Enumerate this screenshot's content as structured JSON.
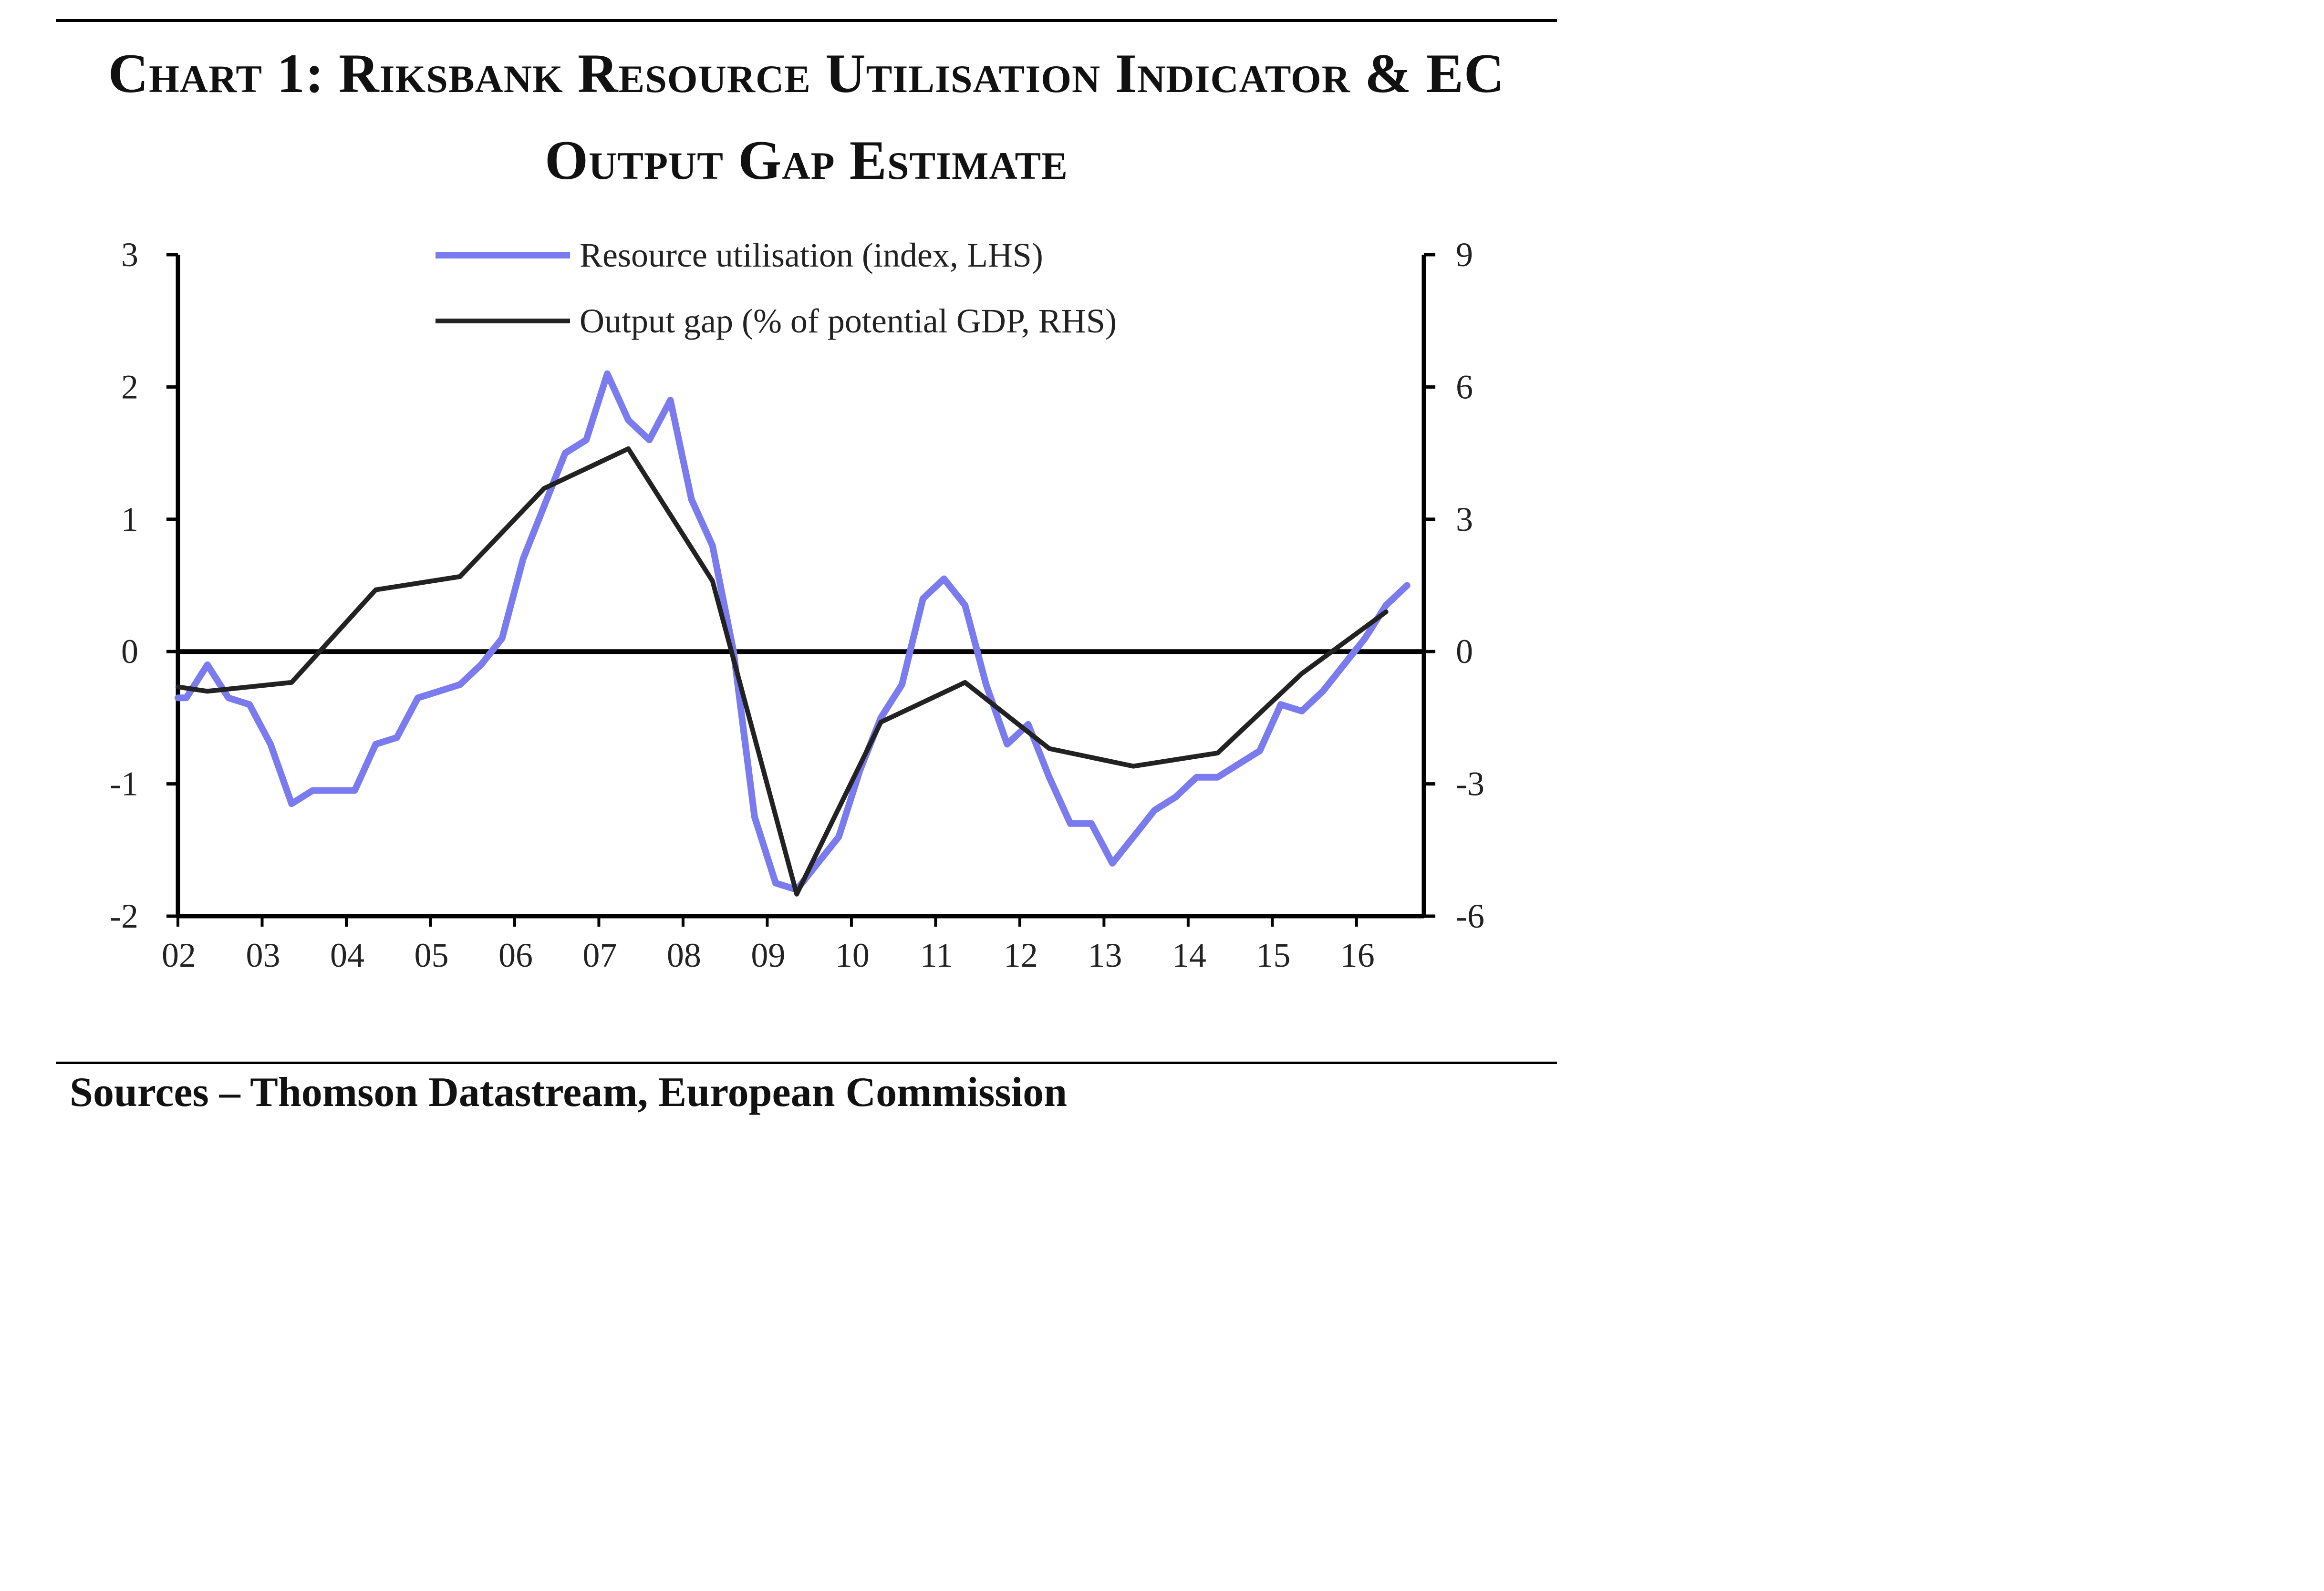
{
  "title": {
    "line1": "Chart 1: Riksbank Resource Utilisation Indicator & EC",
    "line2": "Output Gap Estimate"
  },
  "source": "Sources – Thomson Datastream, European Commission",
  "colors": {
    "resource": "#7b7bf0",
    "output_gap": "#222222",
    "axis": "#000000"
  },
  "chart_data": {
    "type": "line",
    "title": "Chart 1: Riksbank Resource Utilisation Indicator & EC Output Gap Estimate",
    "x_tick_labels": [
      "02",
      "03",
      "04",
      "05",
      "06",
      "07",
      "08",
      "09",
      "10",
      "11",
      "12",
      "13",
      "14",
      "15",
      "16"
    ],
    "xlim": [
      2002,
      2016.8
    ],
    "ylim_left": [
      -2,
      3
    ],
    "ylim_right": [
      -6,
      9
    ],
    "yticks_left": [
      "3",
      "2",
      "1",
      "0",
      "-1",
      "-2"
    ],
    "yticks_right": [
      "9",
      "6",
      "3",
      "0",
      "-3",
      "-6"
    ],
    "grid": false,
    "legend_position": "top-center",
    "series": [
      {
        "name": "Resource utilisation (index, LHS)",
        "axis": "left",
        "x": [
          2002.0,
          2002.1,
          2002.35,
          2002.6,
          2002.85,
          2003.1,
          2003.35,
          2003.6,
          2003.85,
          2004.1,
          2004.35,
          2004.6,
          2004.85,
          2005.1,
          2005.35,
          2005.6,
          2005.85,
          2006.1,
          2006.35,
          2006.6,
          2006.85,
          2007.1,
          2007.35,
          2007.6,
          2007.85,
          2008.1,
          2008.35,
          2008.6,
          2008.85,
          2009.1,
          2009.35,
          2009.6,
          2009.85,
          2010.1,
          2010.35,
          2010.6,
          2010.85,
          2011.1,
          2011.35,
          2011.6,
          2011.85,
          2012.1,
          2012.35,
          2012.6,
          2012.85,
          2013.1,
          2013.35,
          2013.6,
          2013.85,
          2014.1,
          2014.35,
          2014.6,
          2014.85,
          2015.1,
          2015.35,
          2015.6,
          2015.85,
          2016.1,
          2016.35,
          2016.6
        ],
        "values": [
          -0.35,
          -0.35,
          -0.1,
          -0.35,
          -0.4,
          -0.7,
          -1.15,
          -1.05,
          -1.05,
          -1.05,
          -0.7,
          -0.65,
          -0.35,
          -0.3,
          -0.25,
          -0.1,
          0.1,
          0.7,
          1.1,
          1.5,
          1.6,
          2.1,
          1.75,
          1.6,
          1.9,
          1.15,
          0.8,
          0.0,
          -1.25,
          -1.75,
          -1.8,
          -1.6,
          -1.4,
          -0.9,
          -0.5,
          -0.25,
          0.4,
          0.55,
          0.35,
          -0.25,
          -0.7,
          -0.55,
          -0.95,
          -1.3,
          -1.3,
          -1.6,
          -1.4,
          -1.2,
          -1.1,
          -0.95,
          -0.95,
          -0.85,
          -0.75,
          -0.4,
          -0.45,
          -0.3,
          -0.1,
          0.1,
          0.35,
          0.5
        ]
      },
      {
        "name": "Output gap (% of potential GDP, RHS)",
        "axis": "right",
        "x": [
          2002.0,
          2002.35,
          2003.35,
          2004.35,
          2005.35,
          2006.35,
          2007.35,
          2008.35,
          2009.35,
          2010.35,
          2011.35,
          2012.35,
          2013.35,
          2014.35,
          2015.35,
          2016.35
        ],
        "values": [
          -0.8,
          -0.9,
          -0.7,
          1.4,
          1.7,
          3.7,
          4.6,
          1.6,
          -5.5,
          -1.6,
          -0.7,
          -2.2,
          -2.6,
          -2.3,
          -0.5,
          0.9
        ]
      }
    ]
  }
}
